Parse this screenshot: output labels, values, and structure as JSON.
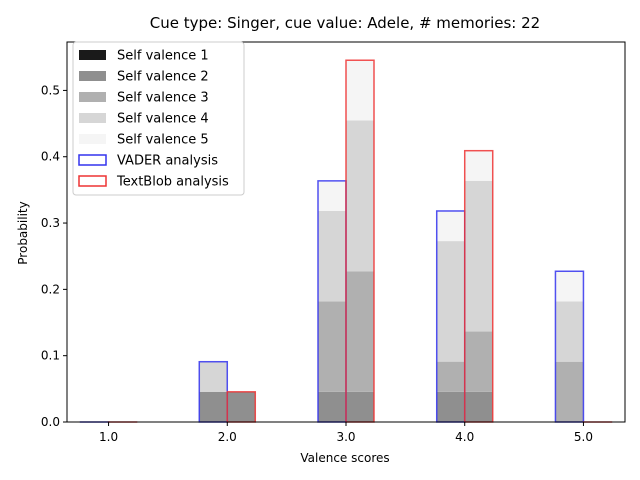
{
  "chart_data": {
    "type": "bar",
    "title": "Cue type: Singer, cue value: Adele, # memories: 22",
    "xlabel": "Valence scores",
    "ylabel": "Probability",
    "categories": [
      "1.0",
      "2.0",
      "3.0",
      "4.0",
      "5.0"
    ],
    "x_values": [
      1,
      2,
      3,
      4,
      5
    ],
    "xlim": [
      0.65,
      5.35
    ],
    "ylim": [
      0,
      0.573
    ],
    "yticks": [
      "0.0",
      "0.1",
      "0.2",
      "0.3",
      "0.4",
      "0.5"
    ],
    "ytick_values": [
      0,
      0.1,
      0.2,
      0.3,
      0.4,
      0.5
    ],
    "legend_position": "upper left",
    "stacked_series": [
      {
        "name": "Self valence 1",
        "color": "#1a1a1a",
        "vader": [
          0,
          0,
          0,
          0,
          0
        ],
        "textblob": [
          0,
          0,
          0,
          0,
          0
        ]
      },
      {
        "name": "Self valence 2",
        "color": "#8f8f8f",
        "vader": [
          0,
          0.0455,
          0.0455,
          0.0455,
          0
        ],
        "textblob": [
          0,
          0.0455,
          0.0455,
          0.0455,
          0
        ]
      },
      {
        "name": "Self valence 3",
        "color": "#b0b0b0",
        "vader": [
          0,
          0,
          0.1364,
          0.0455,
          0.0909
        ],
        "textblob": [
          0,
          0,
          0.1818,
          0.0909,
          0
        ]
      },
      {
        "name": "Self valence 4",
        "color": "#d6d6d6",
        "vader": [
          0,
          0.0455,
          0.1364,
          0.1818,
          0.0909
        ],
        "textblob": [
          0,
          0,
          0.2273,
          0.2273,
          0
        ]
      },
      {
        "name": "Self valence 5",
        "color": "#f5f5f5",
        "vader": [
          0,
          0,
          0.0455,
          0.0455,
          0.0455
        ],
        "textblob": [
          0,
          0,
          0.0909,
          0.0455,
          0
        ]
      }
    ],
    "outline_series": [
      {
        "name": "VADER analysis",
        "color": "#3333ee",
        "values": [
          0,
          0.0909,
          0.3636,
          0.3182,
          0.2273
        ]
      },
      {
        "name": "TextBlob analysis",
        "color": "#ee3333",
        "values": [
          0,
          0.0455,
          0.5455,
          0.4091,
          0
        ]
      }
    ]
  }
}
